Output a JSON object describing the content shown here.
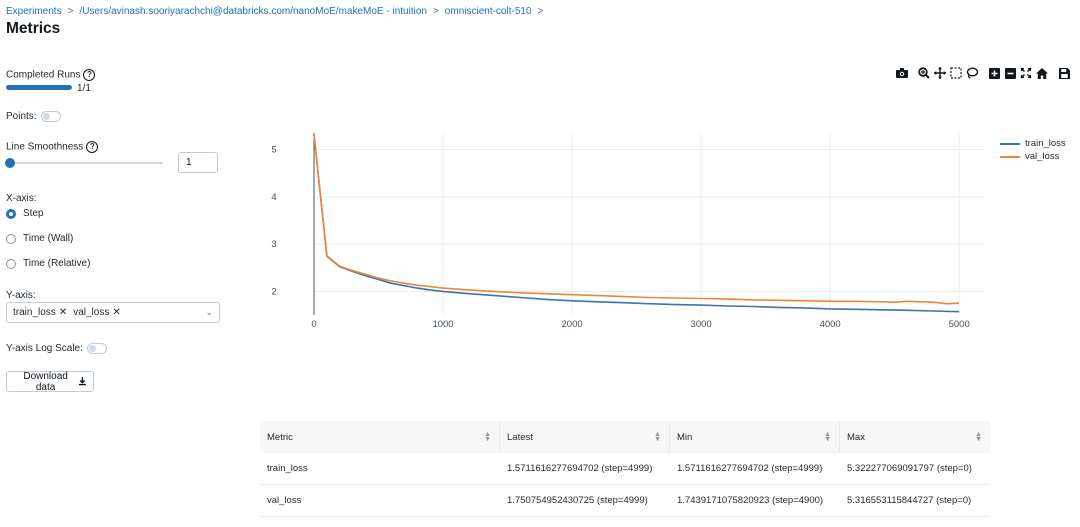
{
  "breadcrumb": {
    "items": [
      "Experiments",
      "/Users/avinash.sooriyarachchi@databricks.com/nanoMoE/makeMoE - intuition",
      "omniscient-colt-510"
    ],
    "separator": ">"
  },
  "page": {
    "title": "Metrics"
  },
  "controls": {
    "completed_runs": {
      "label": "Completed Runs",
      "count_text": "1/1",
      "progress": 1.0
    },
    "points": {
      "label": "Points:",
      "enabled": false
    },
    "line_smoothness": {
      "label": "Line Smoothness",
      "value": "1",
      "slider_value": 1
    },
    "x_axis": {
      "label": "X-axis:",
      "options": [
        "Step",
        "Time (Wall)",
        "Time (Relative)"
      ],
      "selected": "Step"
    },
    "y_axis": {
      "label": "Y-axis:",
      "selected_tags": [
        "train_loss",
        "val_loss"
      ],
      "remove_glyph": "✕",
      "chevron": "⌄"
    },
    "y_axis_log_scale": {
      "label": "Y-axis Log Scale:",
      "enabled": false
    },
    "download_button": {
      "label": "Download data"
    }
  },
  "toolbar": {
    "icons": [
      "camera-icon",
      "zoom-icon",
      "pan-icon",
      "box-select-icon",
      "lasso-select-icon",
      "zoom-in-icon",
      "zoom-out-icon",
      "autoscale-icon",
      "reset-axes-icon",
      "save-icon"
    ]
  },
  "chart_data": {
    "type": "line",
    "title": "",
    "xlabel": "",
    "ylabel": "",
    "xlim": [
      0,
      5200
    ],
    "ylim": [
      1.5,
      5.35
    ],
    "x_ticks": [
      "0",
      "1000",
      "2000",
      "3000",
      "4000",
      "5000"
    ],
    "y_ticks": [
      "2",
      "3",
      "4",
      "5"
    ],
    "grid": true,
    "legend_position": "top-right",
    "series": [
      {
        "name": "train_loss",
        "color": "#3b75af",
        "x": [
          0,
          100,
          200,
          300,
          400,
          500,
          600,
          700,
          800,
          900,
          1000,
          1200,
          1400,
          1600,
          1800,
          2000,
          2200,
          2400,
          2600,
          2800,
          3000,
          3200,
          3400,
          3600,
          3800,
          4000,
          4200,
          4400,
          4600,
          4800,
          4999
        ],
        "y": [
          5.32,
          2.74,
          2.52,
          2.42,
          2.33,
          2.25,
          2.17,
          2.12,
          2.07,
          2.03,
          2.0,
          1.95,
          1.91,
          1.87,
          1.83,
          1.8,
          1.78,
          1.76,
          1.74,
          1.72,
          1.71,
          1.69,
          1.68,
          1.66,
          1.65,
          1.63,
          1.62,
          1.61,
          1.6,
          1.585,
          1.57
        ]
      },
      {
        "name": "val_loss",
        "color": "#ef8636",
        "x": [
          0,
          100,
          200,
          300,
          400,
          500,
          600,
          700,
          800,
          900,
          1000,
          1200,
          1400,
          1600,
          1800,
          2000,
          2200,
          2400,
          2600,
          2800,
          3000,
          3200,
          3400,
          3600,
          3800,
          4000,
          4200,
          4400,
          4500,
          4600,
          4800,
          4900,
          4999
        ],
        "y": [
          5.32,
          2.75,
          2.53,
          2.44,
          2.36,
          2.28,
          2.22,
          2.17,
          2.13,
          2.1,
          2.07,
          2.03,
          2.0,
          1.97,
          1.95,
          1.93,
          1.91,
          1.89,
          1.87,
          1.86,
          1.85,
          1.84,
          1.82,
          1.81,
          1.8,
          1.79,
          1.79,
          1.78,
          1.77,
          1.79,
          1.77,
          1.74,
          1.75
        ]
      }
    ]
  },
  "metrics_table": {
    "headers": [
      "Metric",
      "Latest",
      "Min",
      "Max"
    ],
    "rows": [
      [
        "train_loss",
        "1.5711616277694702 (step=4999)",
        "1.5711616277694702 (step=4999)",
        "5.322277069091797 (step=0)"
      ],
      [
        "val_loss",
        "1.750754952430725 (step=4999)",
        "1.7439171075820923 (step=4900)",
        "5.316553115844727 (step=0)"
      ]
    ]
  }
}
